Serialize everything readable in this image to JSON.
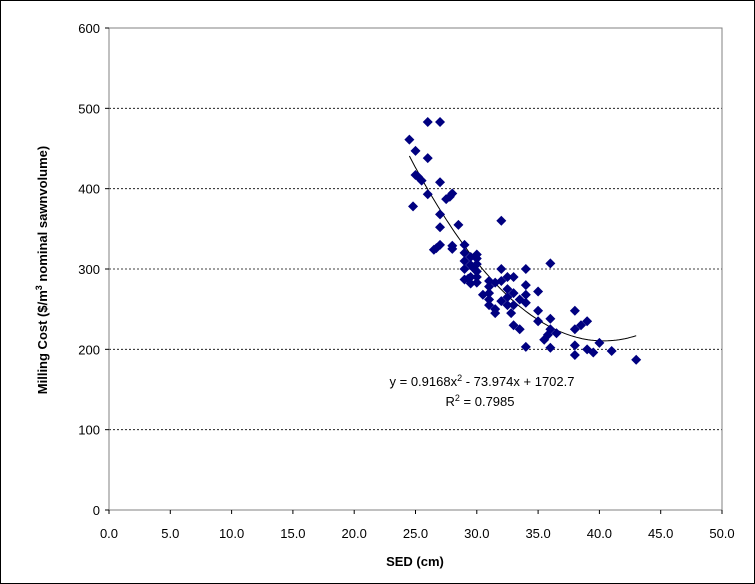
{
  "chart_data": {
    "type": "scatter",
    "title": "",
    "xlabel": "SED (cm)",
    "ylabel": "Milling Cost ($/m³  nominal sawnvolume)",
    "ylabel_parts": {
      "before": "Milling Cost ($/m",
      "sup": "3",
      "after": "  nominal sawnvolume)"
    },
    "xlim": [
      0,
      50
    ],
    "ylim": [
      0,
      600
    ],
    "xticks": [
      "0.0",
      "5.0",
      "10.0",
      "15.0",
      "20.0",
      "25.0",
      "30.0",
      "35.0",
      "40.0",
      "45.0",
      "50.0"
    ],
    "yticks": [
      "0",
      "100",
      "200",
      "300",
      "400",
      "500",
      "600"
    ],
    "grid": "horizontal-dashed",
    "marker_color": "#000080",
    "series": [
      {
        "points": [
          [
            24.5,
            461
          ],
          [
            24.8,
            378
          ],
          [
            25.0,
            447
          ],
          [
            25.0,
            417
          ],
          [
            25.2,
            415
          ],
          [
            25.5,
            410
          ],
          [
            26.0,
            483
          ],
          [
            26.0,
            438
          ],
          [
            26.0,
            393
          ],
          [
            26.5,
            324
          ],
          [
            26.7,
            326
          ],
          [
            27.0,
            483
          ],
          [
            27.0,
            408
          ],
          [
            27.0,
            368
          ],
          [
            27.0,
            352
          ],
          [
            27.0,
            330
          ],
          [
            27.5,
            387
          ],
          [
            27.8,
            390
          ],
          [
            28.0,
            394
          ],
          [
            28.0,
            329
          ],
          [
            28.0,
            325
          ],
          [
            28.5,
            355
          ],
          [
            29.0,
            330
          ],
          [
            29.0,
            320
          ],
          [
            29.0,
            310
          ],
          [
            29.0,
            300
          ],
          [
            29.0,
            287
          ],
          [
            29.3,
            288
          ],
          [
            29.5,
            315
          ],
          [
            29.5,
            305
          ],
          [
            29.5,
            290
          ],
          [
            29.5,
            282
          ],
          [
            29.8,
            300
          ],
          [
            30.0,
            318
          ],
          [
            30.0,
            313
          ],
          [
            30.0,
            306
          ],
          [
            30.0,
            297
          ],
          [
            30.0,
            290
          ],
          [
            30.0,
            283
          ],
          [
            30.5,
            268
          ],
          [
            31.0,
            285
          ],
          [
            31.0,
            278
          ],
          [
            31.0,
            270
          ],
          [
            31.0,
            262
          ],
          [
            31.0,
            255
          ],
          [
            31.5,
            283
          ],
          [
            31.5,
            250
          ],
          [
            31.5,
            245
          ],
          [
            32.0,
            360
          ],
          [
            32.0,
            300
          ],
          [
            32.0,
            285
          ],
          [
            32.0,
            260
          ],
          [
            32.5,
            290
          ],
          [
            32.5,
            275
          ],
          [
            32.5,
            265
          ],
          [
            32.5,
            255
          ],
          [
            32.8,
            245
          ],
          [
            33.0,
            290
          ],
          [
            33.0,
            270
          ],
          [
            33.0,
            255
          ],
          [
            33.0,
            230
          ],
          [
            33.5,
            262
          ],
          [
            33.5,
            225
          ],
          [
            34.0,
            300
          ],
          [
            34.0,
            280
          ],
          [
            34.0,
            268
          ],
          [
            34.0,
            258
          ],
          [
            34.0,
            203
          ],
          [
            35.0,
            272
          ],
          [
            35.0,
            248
          ],
          [
            35.0,
            235
          ],
          [
            35.5,
            212
          ],
          [
            35.8,
            218
          ],
          [
            36.0,
            307
          ],
          [
            36.0,
            238
          ],
          [
            36.0,
            225
          ],
          [
            36.0,
            202
          ],
          [
            36.5,
            220
          ],
          [
            38.0,
            248
          ],
          [
            38.0,
            225
          ],
          [
            38.0,
            205
          ],
          [
            38.0,
            193
          ],
          [
            38.5,
            230
          ],
          [
            39.0,
            235
          ],
          [
            39.0,
            200
          ],
          [
            39.5,
            196
          ],
          [
            40.0,
            208
          ],
          [
            41.0,
            198
          ],
          [
            43.0,
            187
          ]
        ]
      }
    ],
    "trendline": {
      "type": "polynomial-2",
      "a": 0.9168,
      "b": -73.974,
      "c": 1702.7,
      "x_range": [
        24.5,
        43.0
      ],
      "equation_label": {
        "prefix": "y = 0.9168x",
        "sup": "2",
        "suffix": " - 73.974x + 1702.7"
      },
      "r2_label": {
        "prefix": "R",
        "sup": "2",
        "suffix": " = 0.7985"
      }
    }
  }
}
